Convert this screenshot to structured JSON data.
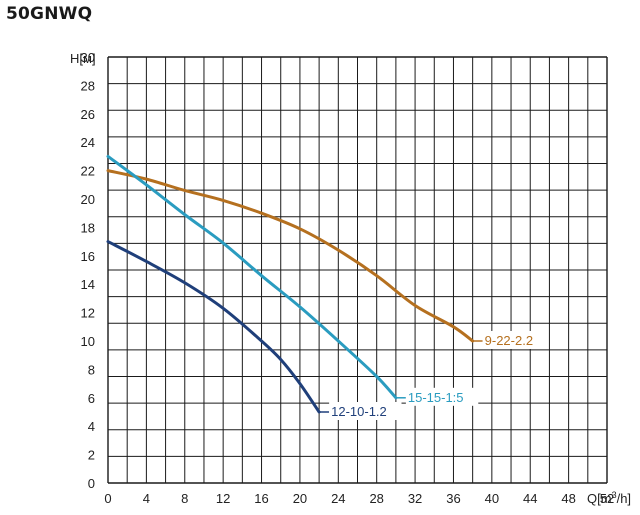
{
  "title": "50GNWQ",
  "chart_data": {
    "type": "line",
    "title": "50GNWQ",
    "ylabel": "H[м]",
    "xlabel_base": "Q[m",
    "xlabel_sup": "3",
    "xlabel_tail": "/h]",
    "xlim": [
      0,
      52
    ],
    "ylim": [
      0,
      30
    ],
    "x_ticks": [
      0,
      4,
      8,
      12,
      16,
      20,
      24,
      28,
      32,
      36,
      40,
      44,
      48,
      52
    ],
    "y_ticks": [
      0,
      2,
      4,
      6,
      8,
      10,
      12,
      14,
      16,
      18,
      20,
      22,
      24,
      26,
      28,
      30
    ],
    "grid": true,
    "series": [
      {
        "name": "9-22-2.2",
        "color": "#b5701f",
        "x": [
          0,
          4,
          8,
          12,
          16,
          20,
          24,
          28,
          32,
          36,
          38
        ],
        "y": [
          22,
          21.4,
          20.6,
          19.9,
          19.0,
          17.9,
          16.4,
          14.6,
          12.5,
          11.0,
          10
        ]
      },
      {
        "name": "15-15-1:5",
        "color": "#2a9cc0",
        "x": [
          0,
          4,
          8,
          12,
          16,
          20,
          24,
          28,
          30
        ],
        "y": [
          23,
          21.0,
          18.9,
          16.9,
          14.6,
          12.4,
          10.0,
          7.5,
          6
        ]
      },
      {
        "name": "12-10-1.2",
        "color": "#1f3f7a",
        "x": [
          0,
          4,
          8,
          12,
          16,
          18,
          20,
          22
        ],
        "y": [
          17,
          15.6,
          14.1,
          12.3,
          10.0,
          8.7,
          7.0,
          5
        ]
      }
    ]
  }
}
